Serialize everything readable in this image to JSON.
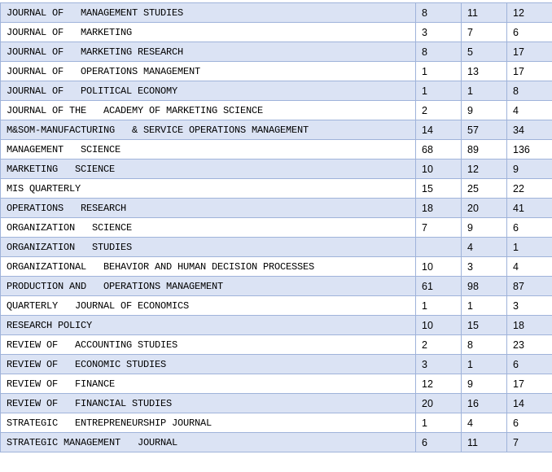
{
  "table": {
    "rows": [
      [
        "JOURNAL OF   MANAGEMENT STUDIES",
        8,
        11,
        12
      ],
      [
        "JOURNAL OF   MARKETING",
        3,
        7,
        6
      ],
      [
        "JOURNAL OF   MARKETING RESEARCH",
        8,
        5,
        17
      ],
      [
        "JOURNAL OF   OPERATIONS MANAGEMENT",
        1,
        13,
        17
      ],
      [
        "JOURNAL OF   POLITICAL ECONOMY",
        1,
        1,
        8
      ],
      [
        "JOURNAL OF THE   ACADEMY OF MARKETING SCIENCE",
        2,
        9,
        4
      ],
      [
        "M&SOM-MANUFACTURING   & SERVICE OPERATIONS MANAGEMENT",
        14,
        57,
        34
      ],
      [
        "MANAGEMENT   SCIENCE",
        68,
        89,
        136
      ],
      [
        "MARKETING   SCIENCE",
        10,
        12,
        9
      ],
      [
        "MIS QUARTERLY",
        15,
        25,
        22
      ],
      [
        "OPERATIONS   RESEARCH",
        18,
        20,
        41
      ],
      [
        "ORGANIZATION   SCIENCE",
        7,
        9,
        6
      ],
      [
        "ORGANIZATION   STUDIES",
        null,
        4,
        1
      ],
      [
        "ORGANIZATIONAL   BEHAVIOR AND HUMAN DECISION PROCESSES",
        10,
        3,
        4
      ],
      [
        "PRODUCTION AND   OPERATIONS MANAGEMENT",
        61,
        98,
        87
      ],
      [
        "QUARTERLY   JOURNAL OF ECONOMICS",
        1,
        1,
        3
      ],
      [
        "RESEARCH POLICY",
        10,
        15,
        18
      ],
      [
        "REVIEW OF   ACCOUNTING STUDIES",
        2,
        8,
        23
      ],
      [
        "REVIEW OF   ECONOMIC STUDIES",
        3,
        1,
        6
      ],
      [
        "REVIEW OF   FINANCE",
        12,
        9,
        17
      ],
      [
        "REVIEW OF   FINANCIAL STUDIES",
        20,
        16,
        14
      ],
      [
        "STRATEGIC   ENTREPRENEURSHIP JOURNAL",
        1,
        4,
        6
      ],
      [
        "STRATEGIC MANAGEMENT   JOURNAL",
        6,
        11,
        7
      ]
    ]
  }
}
